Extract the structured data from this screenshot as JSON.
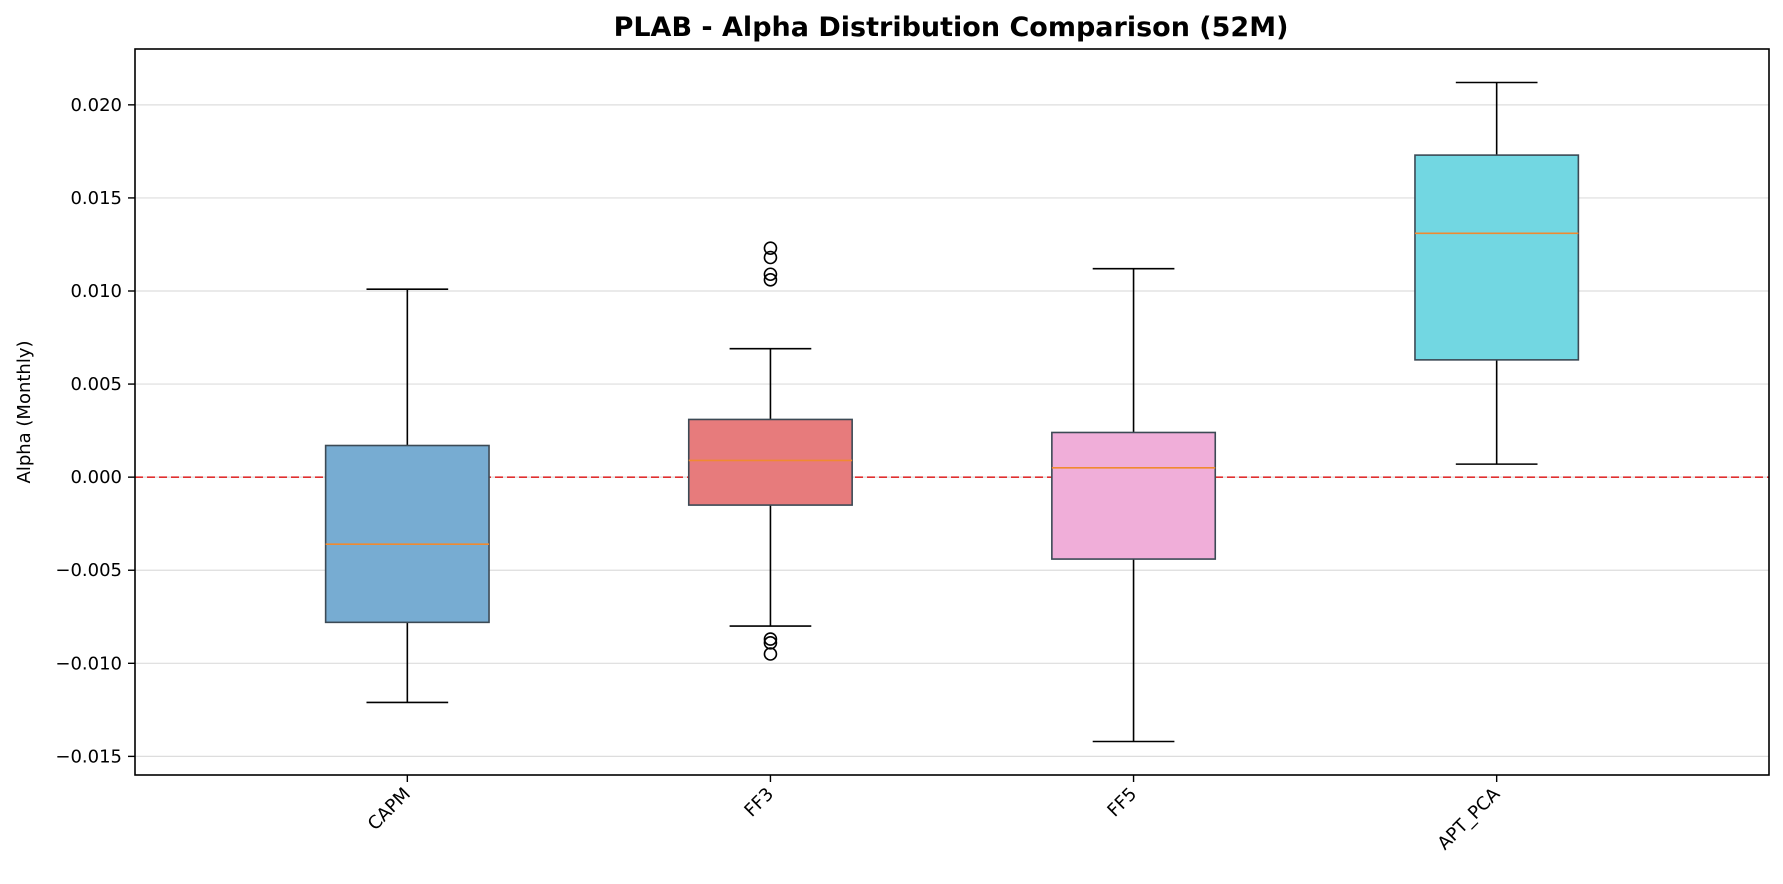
{
  "chart_data": {
    "type": "box",
    "title": "PLAB - Alpha Distribution Comparison (52M)",
    "xlabel": "",
    "ylabel": "Alpha (Monthly)",
    "ylim": [
      -0.016,
      0.023
    ],
    "yticks": [
      -0.015,
      -0.01,
      -0.005,
      0.0,
      0.005,
      0.01,
      0.015,
      0.02
    ],
    "ytick_labels": [
      "−0.015",
      "−0.010",
      "−0.005",
      "0.000",
      "0.005",
      "0.010",
      "0.015",
      "0.020"
    ],
    "grid": {
      "y": true,
      "x": false
    },
    "reference_line": {
      "y": 0.0,
      "color": "#e03030",
      "style": "dashed"
    },
    "categories": [
      "CAPM",
      "FF3",
      "FF5",
      "APT_PCA"
    ],
    "boxes": [
      {
        "name": "CAPM",
        "q1": -0.0078,
        "median": -0.0036,
        "q3": 0.0017,
        "whisker_low": -0.0121,
        "whisker_high": 0.0101,
        "outliers": [],
        "color": "#77acd2"
      },
      {
        "name": "FF3",
        "q1": -0.0015,
        "median": 0.0009,
        "q3": 0.0031,
        "whisker_low": -0.008,
        "whisker_high": 0.0069,
        "outliers": [
          0.0123,
          0.0118,
          0.0109,
          0.0106,
          -0.0087,
          -0.0089,
          -0.0095
        ],
        "color": "#e77b7c"
      },
      {
        "name": "FF5",
        "q1": -0.0044,
        "median": 0.0005,
        "q3": 0.0024,
        "whisker_low": -0.0142,
        "whisker_high": 0.0112,
        "outliers": [],
        "color": "#f0aed9"
      },
      {
        "name": "APT_PCA",
        "q1": 0.0063,
        "median": 0.0131,
        "q3": 0.0173,
        "whisker_low": 0.0007,
        "whisker_high": 0.0212,
        "outliers": [],
        "color": "#72d7e2"
      }
    ],
    "median_color": "#f08a30"
  }
}
